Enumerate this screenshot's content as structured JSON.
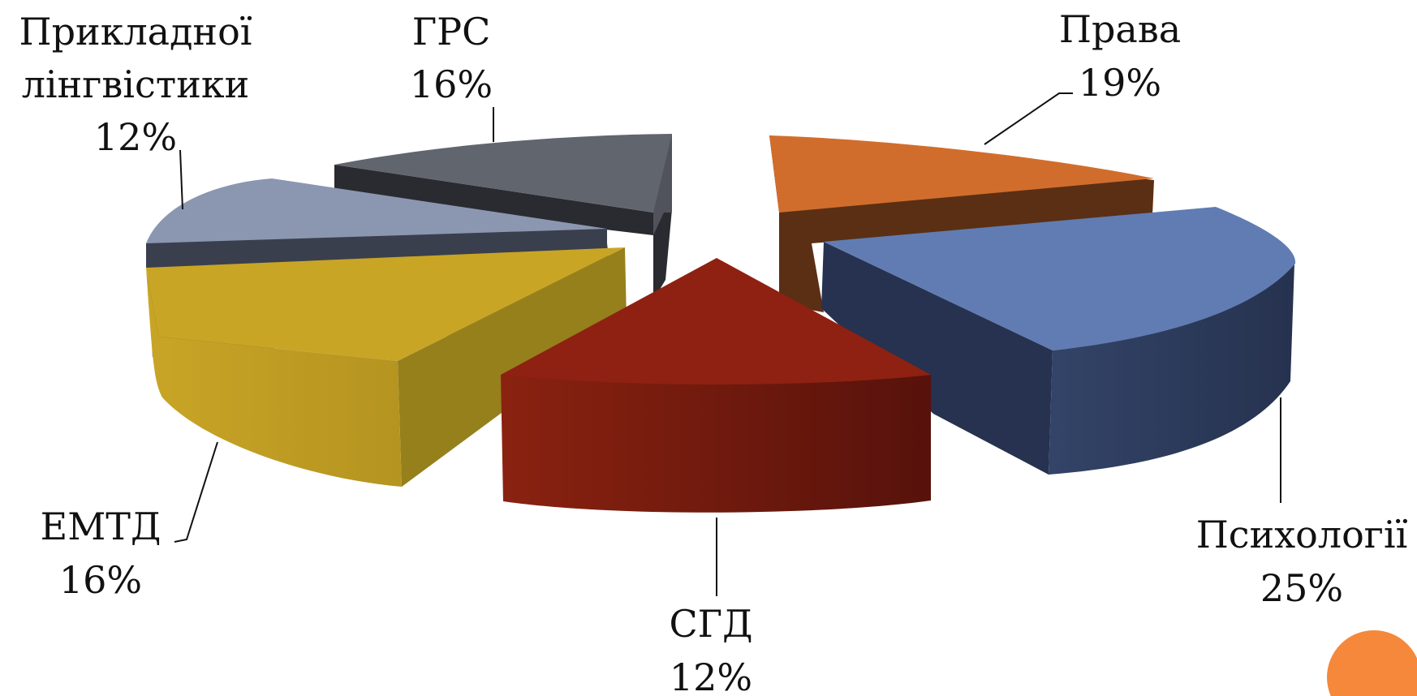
{
  "chart_data": {
    "type": "pie",
    "title": "",
    "style": "3d-exploded",
    "legend": "none",
    "slices": [
      {
        "name": "Права",
        "value": 19,
        "label": "19%",
        "color": "#D16D2C"
      },
      {
        "name": "Психології",
        "value": 25,
        "label": "25%",
        "color": "#607CB3"
      },
      {
        "name": "СГД",
        "value": 12,
        "label": "12%",
        "color": "#8E2112"
      },
      {
        "name": "ЕМТД",
        "value": 16,
        "label": "16%",
        "color": "#C8A524"
      },
      {
        "name": "Прикладної лінгвістики",
        "value": 12,
        "label": "12%",
        "color": "#8B97B0"
      },
      {
        "name": "ГРС",
        "value": 16,
        "label": "16%",
        "color": "#61656E"
      }
    ]
  },
  "labels": {
    "prava": {
      "line1": "Права",
      "line2": "19%"
    },
    "psykholohii": {
      "line1": "Психології",
      "line2": "25%"
    },
    "sgd": {
      "line1": "СГД",
      "line2": "12%"
    },
    "emtd": {
      "line1": "ЕМТД",
      "line2": "16%"
    },
    "prykladnoi": {
      "line1": "Прикладної",
      "line2": "лінгвістики",
      "line3": "12%"
    },
    "grs": {
      "line1": "ГРС",
      "line2": "16%"
    }
  },
  "accent_color": "#F5883A"
}
